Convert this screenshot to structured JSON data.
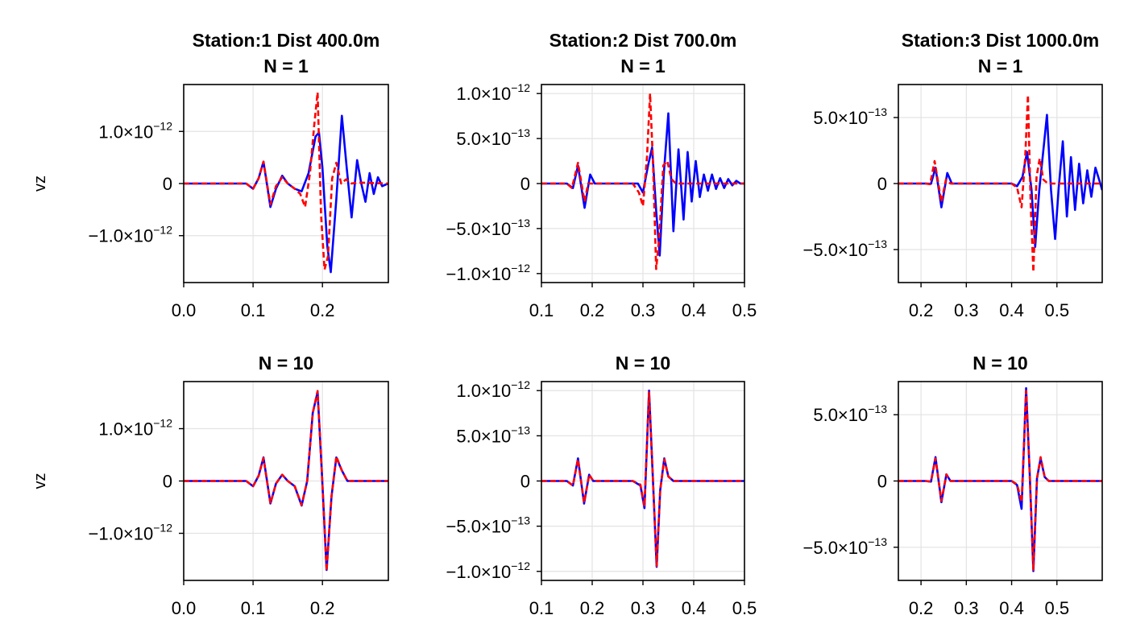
{
  "chart_data": [
    {
      "type": "line",
      "title": "Station:1 Dist 400.0m",
      "subtitle": "N = 1",
      "ylabel": "vz",
      "xlim": [
        0.0,
        0.295
      ],
      "ylim": [
        -1.9e-12,
        1.9e-12
      ],
      "xticks": [
        "0.0",
        "0.1",
        "0.2"
      ],
      "xtick_values": [
        0.0,
        0.1,
        0.2
      ],
      "yticks": [
        {
          "value": 1e-12,
          "mant": "1.0×10",
          "exp": "−12"
        },
        {
          "value": 0,
          "mant": "0",
          "exp": ""
        },
        {
          "value": -1e-12,
          "mant": "−1.0×10",
          "exp": "−12"
        }
      ],
      "grid": true,
      "series": [
        {
          "color": "#0000ff",
          "style": "solid",
          "x": [
            0.0,
            0.09,
            0.1,
            0.108,
            0.115,
            0.125,
            0.133,
            0.142,
            0.15,
            0.16,
            0.17,
            0.18,
            0.19,
            0.195,
            0.2,
            0.207,
            0.212,
            0.22,
            0.228,
            0.235,
            0.242,
            0.25,
            0.256,
            0.262,
            0.268,
            0.274,
            0.28,
            0.286,
            0.295
          ],
          "y": [
            0,
            0,
            -1e-13,
            1e-13,
            4.2e-13,
            -4.5e-13,
            -1e-13,
            1.5e-13,
            0.0,
            -1e-13,
            -1.5e-13,
            2e-13,
            9e-13,
            9.8e-13,
            3e-13,
            -1.2e-12,
            -1.7e-12,
            -3e-13,
            1.3e-12,
            3e-13,
            -6.5e-13,
            4.5e-13,
            0.0,
            -3.5e-13,
            2e-13,
            -2e-13,
            1.2e-13,
            -5e-14,
            0.0
          ]
        },
        {
          "color": "#ff0000",
          "style": "dashed",
          "x": [
            0.0,
            0.09,
            0.1,
            0.108,
            0.115,
            0.125,
            0.133,
            0.142,
            0.15,
            0.16,
            0.168,
            0.175,
            0.182,
            0.188,
            0.193,
            0.198,
            0.203,
            0.208,
            0.214,
            0.22,
            0.227,
            0.234,
            0.242,
            0.25,
            0.295
          ],
          "y": [
            0,
            0,
            -1e-13,
            1e-13,
            4.2e-13,
            -4e-13,
            -5e-14,
            1.2e-13,
            0.0,
            -1e-13,
            -2e-13,
            -4.5e-13,
            2e-13,
            1.1e-12,
            1.75e-12,
            -6e-13,
            -1.65e-12,
            -1.4e-12,
            1e-13,
            4e-13,
            0.0,
            8e-14,
            0.0,
            2e-14,
            0
          ]
        }
      ]
    },
    {
      "type": "line",
      "title": "Station:2 Dist 700.0m",
      "subtitle": "N = 1",
      "ylabel": "",
      "xlim": [
        0.1,
        0.5
      ],
      "ylim": [
        -1.1e-12,
        1.1e-12
      ],
      "xticks": [
        "0.1",
        "0.2",
        "0.3",
        "0.4",
        "0.5"
      ],
      "xtick_values": [
        0.1,
        0.2,
        0.3,
        0.4,
        0.5
      ],
      "yticks": [
        {
          "value": 1e-12,
          "mant": "1.0×10",
          "exp": "−12"
        },
        {
          "value": 5e-13,
          "mant": "5.0×10",
          "exp": "−13"
        },
        {
          "value": 0,
          "mant": "0",
          "exp": ""
        },
        {
          "value": -5e-13,
          "mant": "−5.0×10",
          "exp": "−13"
        },
        {
          "value": -1e-12,
          "mant": "−1.0×10",
          "exp": "−12"
        }
      ],
      "grid": true,
      "series": [
        {
          "color": "#0000ff",
          "style": "solid",
          "x": [
            0.1,
            0.15,
            0.162,
            0.172,
            0.185,
            0.196,
            0.205,
            0.215,
            0.29,
            0.3,
            0.31,
            0.318,
            0.326,
            0.333,
            0.341,
            0.35,
            0.36,
            0.37,
            0.38,
            0.388,
            0.396,
            0.404,
            0.412,
            0.42,
            0.428,
            0.436,
            0.444,
            0.452,
            0.46,
            0.468,
            0.476,
            0.484,
            0.492,
            0.5
          ],
          "y": [
            0,
            0,
            -5e-14,
            2e-13,
            -2.7e-13,
            1e-13,
            0.0,
            0.0,
            0.0,
            -1e-13,
            2e-13,
            4e-13,
            -3e-13,
            -8e-13,
            1e-13,
            7.8e-13,
            -5.3e-13,
            3.8e-13,
            -4e-13,
            3.5e-13,
            -2e-13,
            2.5e-13,
            -1.5e-13,
            1e-13,
            -8e-14,
            1e-13,
            -6e-14,
            6e-14,
            -5e-14,
            5e-14,
            -2e-14,
            3e-14,
            0.0,
            0
          ]
        },
        {
          "color": "#ff0000",
          "style": "dashed",
          "x": [
            0.1,
            0.15,
            0.16,
            0.172,
            0.185,
            0.192,
            0.2,
            0.28,
            0.292,
            0.3,
            0.308,
            0.314,
            0.32,
            0.326,
            0.332,
            0.34,
            0.348,
            0.356,
            0.365,
            0.375,
            0.5
          ],
          "y": [
            0,
            0,
            -5e-14,
            2.3e-13,
            -2e-13,
            0.0,
            0.0,
            0.0,
            -1e-13,
            -2.5e-13,
            3e-13,
            1e-12,
            2e-13,
            -9.5e-13,
            -6e-13,
            2e-13,
            2.5e-13,
            5e-14,
            0.0,
            0.0,
            0
          ]
        }
      ]
    },
    {
      "type": "line",
      "title": "Station:3 Dist 1000.0m",
      "subtitle": "N = 1",
      "ylabel": "",
      "xlim": [
        0.15,
        0.6
      ],
      "ylim": [
        -7.5e-13,
        7.5e-13
      ],
      "xticks": [
        "0.2",
        "0.3",
        "0.4",
        "0.5"
      ],
      "xtick_values": [
        0.2,
        0.3,
        0.4,
        0.5
      ],
      "yticks": [
        {
          "value": 5e-13,
          "mant": "5.0×10",
          "exp": "−13"
        },
        {
          "value": 0,
          "mant": "0",
          "exp": ""
        },
        {
          "value": -5e-13,
          "mant": "−5.0×10",
          "exp": "−13"
        }
      ],
      "grid": true,
      "series": [
        {
          "color": "#0000ff",
          "style": "solid",
          "x": [
            0.15,
            0.21,
            0.222,
            0.232,
            0.245,
            0.258,
            0.268,
            0.28,
            0.4,
            0.412,
            0.424,
            0.434,
            0.444,
            0.452,
            0.461,
            0.47,
            0.478,
            0.487,
            0.496,
            0.504,
            0.513,
            0.522,
            0.531,
            0.54,
            0.549,
            0.558,
            0.567,
            0.576,
            0.585,
            0.594,
            0.6
          ],
          "y": [
            0,
            0,
            -2e-15,
            1.2e-13,
            -1.8e-13,
            8e-14,
            0.0,
            0.0,
            0.0,
            -2e-14,
            5e-14,
            2.4e-13,
            -5e-14,
            -4.8e-13,
            -5e-14,
            2.5e-13,
            5.2e-13,
            -5e-14,
            -4.2e-13,
            -3e-14,
            3.2e-13,
            -2.5e-13,
            2e-13,
            -2e-13,
            1.5e-13,
            -1.5e-13,
            1e-13,
            -1e-13,
            1.2e-13,
            2e-14,
            -5e-14
          ]
        },
        {
          "color": "#ff0000",
          "style": "dashed",
          "x": [
            0.15,
            0.21,
            0.22,
            0.23,
            0.245,
            0.255,
            0.265,
            0.4,
            0.412,
            0.422,
            0.43,
            0.436,
            0.442,
            0.448,
            0.455,
            0.462,
            0.47,
            0.48,
            0.6
          ],
          "y": [
            0,
            0,
            -5e-15,
            1.7e-13,
            -1.4e-13,
            3e-14,
            0.0,
            0.0,
            -3e-14,
            -1.8e-13,
            2e-13,
            6.7e-13,
            -1.5e-13,
            -6.7e-13,
            5e-14,
            1.9e-13,
            3e-14,
            0.0,
            0
          ]
        }
      ]
    },
    {
      "type": "line",
      "title": "N = 10",
      "subtitle": "",
      "ylabel": "vz",
      "xlim": [
        0.0,
        0.295
      ],
      "ylim": [
        -1.9e-12,
        1.9e-12
      ],
      "xticks": [
        "0.0",
        "0.1",
        "0.2"
      ],
      "xtick_values": [
        0.0,
        0.1,
        0.2
      ],
      "yticks": [
        {
          "value": 1e-12,
          "mant": "1.0×10",
          "exp": "−12"
        },
        {
          "value": 0,
          "mant": "0",
          "exp": ""
        },
        {
          "value": -1e-12,
          "mant": "−1.0×10",
          "exp": "−12"
        }
      ],
      "grid": true,
      "series": [
        {
          "color": "#0000ff",
          "style": "solid",
          "x": [
            0.0,
            0.09,
            0.1,
            0.108,
            0.115,
            0.125,
            0.133,
            0.142,
            0.15,
            0.16,
            0.17,
            0.178,
            0.186,
            0.193,
            0.199,
            0.206,
            0.213,
            0.22,
            0.228,
            0.236,
            0.295
          ],
          "y": [
            0,
            0,
            -1e-13,
            1e-13,
            4.5e-13,
            -4.3e-13,
            -5e-14,
            1.2e-13,
            0.0,
            -1e-13,
            -4.7e-13,
            0.0,
            1.3e-12,
            1.7e-12,
            2e-13,
            -1.7e-12,
            -3e-13,
            4.5e-13,
            2e-13,
            0.0,
            0
          ]
        },
        {
          "color": "#ff0000",
          "style": "dashed",
          "x": [
            0.0,
            0.09,
            0.1,
            0.108,
            0.115,
            0.125,
            0.133,
            0.142,
            0.15,
            0.16,
            0.17,
            0.178,
            0.186,
            0.193,
            0.199,
            0.206,
            0.213,
            0.22,
            0.228,
            0.236,
            0.295
          ],
          "y": [
            0,
            0,
            -1e-13,
            1e-13,
            4.4e-13,
            -4.3e-13,
            -5e-14,
            1.2e-13,
            0.0,
            -1e-13,
            -4.6e-13,
            0.0,
            1.3e-12,
            1.72e-12,
            2e-13,
            -1.72e-12,
            -3e-13,
            4.7e-13,
            2e-13,
            0.0,
            0
          ]
        }
      ]
    },
    {
      "type": "line",
      "title": "N = 10",
      "subtitle": "",
      "ylabel": "",
      "xlim": [
        0.1,
        0.5
      ],
      "ylim": [
        -1.1e-12,
        1.1e-12
      ],
      "xticks": [
        "0.1",
        "0.2",
        "0.3",
        "0.4",
        "0.5"
      ],
      "xtick_values": [
        0.1,
        0.2,
        0.3,
        0.4,
        0.5
      ],
      "yticks": [
        {
          "value": 1e-12,
          "mant": "1.0×10",
          "exp": "−12"
        },
        {
          "value": 5e-13,
          "mant": "5.0×10",
          "exp": "−13"
        },
        {
          "value": 0,
          "mant": "0",
          "exp": ""
        },
        {
          "value": -5e-13,
          "mant": "−5.0×10",
          "exp": "−13"
        },
        {
          "value": -1e-12,
          "mant": "−1.0×10",
          "exp": "−12"
        }
      ],
      "grid": true,
      "series": [
        {
          "color": "#0000ff",
          "style": "solid",
          "x": [
            0.1,
            0.15,
            0.162,
            0.172,
            0.184,
            0.194,
            0.202,
            0.212,
            0.28,
            0.295,
            0.303,
            0.312,
            0.319,
            0.327,
            0.334,
            0.342,
            0.35,
            0.36,
            0.5
          ],
          "y": [
            0,
            0,
            -5e-14,
            2.5e-13,
            -2.5e-13,
            7e-14,
            0.0,
            0.0,
            0.0,
            -5e-14,
            -3e-13,
            1e-12,
            1e-13,
            -9.5e-13,
            -1e-13,
            2.5e-13,
            5e-14,
            0.0,
            0
          ]
        },
        {
          "color": "#ff0000",
          "style": "dashed",
          "x": [
            0.1,
            0.15,
            0.162,
            0.172,
            0.184,
            0.194,
            0.202,
            0.212,
            0.28,
            0.295,
            0.303,
            0.312,
            0.319,
            0.327,
            0.334,
            0.342,
            0.35,
            0.36,
            0.5
          ],
          "y": [
            0,
            0,
            -5e-14,
            2.4e-13,
            -2.4e-13,
            7e-14,
            0.0,
            0.0,
            0.0,
            -4e-14,
            -2.8e-13,
            9.8e-13,
            1e-13,
            -9.4e-13,
            -1e-13,
            2.4e-13,
            5e-14,
            0.0,
            0
          ]
        }
      ]
    },
    {
      "type": "line",
      "title": "N = 10",
      "subtitle": "",
      "ylabel": "",
      "xlim": [
        0.15,
        0.6
      ],
      "ylim": [
        -7.5e-13,
        7.5e-13
      ],
      "xticks": [
        "0.2",
        "0.3",
        "0.4",
        "0.5"
      ],
      "xtick_values": [
        0.2,
        0.3,
        0.4,
        0.5
      ],
      "yticks": [
        {
          "value": 5e-13,
          "mant": "5.0×10",
          "exp": "−13"
        },
        {
          "value": 0,
          "mant": "0",
          "exp": ""
        },
        {
          "value": -5e-13,
          "mant": "−5.0×10",
          "exp": "−13"
        }
      ],
      "grid": true,
      "series": [
        {
          "color": "#0000ff",
          "style": "solid",
          "x": [
            0.15,
            0.21,
            0.222,
            0.232,
            0.245,
            0.256,
            0.265,
            0.28,
            0.4,
            0.412,
            0.422,
            0.432,
            0.44,
            0.448,
            0.456,
            0.464,
            0.473,
            0.482,
            0.6
          ],
          "y": [
            0,
            0,
            -5e-15,
            1.8e-13,
            -1.6e-13,
            5e-14,
            0.0,
            0.0,
            0.0,
            -3e-14,
            -2.1e-13,
            7e-13,
            5e-14,
            -6.8e-13,
            2e-14,
            1.7e-13,
            3e-14,
            0.0,
            0
          ]
        },
        {
          "color": "#ff0000",
          "style": "dashed",
          "x": [
            0.15,
            0.21,
            0.222,
            0.232,
            0.245,
            0.256,
            0.265,
            0.28,
            0.4,
            0.412,
            0.422,
            0.432,
            0.44,
            0.448,
            0.456,
            0.464,
            0.473,
            0.482,
            0.6
          ],
          "y": [
            0,
            0,
            -5e-15,
            1.7e-13,
            -1.5e-13,
            5e-14,
            0.0,
            0.0,
            0.0,
            -2.5e-14,
            -1.6e-13,
            6.8e-13,
            5e-14,
            -6.7e-13,
            2e-14,
            1.8e-13,
            3e-14,
            0.0,
            0
          ]
        }
      ]
    }
  ]
}
